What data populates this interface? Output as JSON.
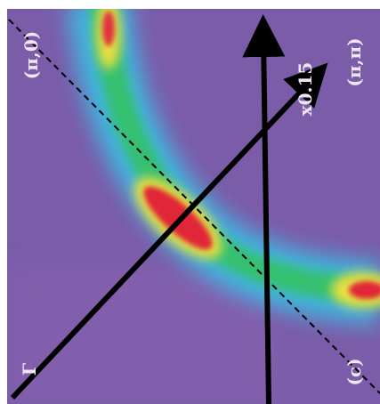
{
  "labels": {
    "top_left": "(π,0)",
    "doping": "x0.15",
    "top_right": "(π,π)",
    "bottom_left": "Γ",
    "panel": "(c)"
  }
}
